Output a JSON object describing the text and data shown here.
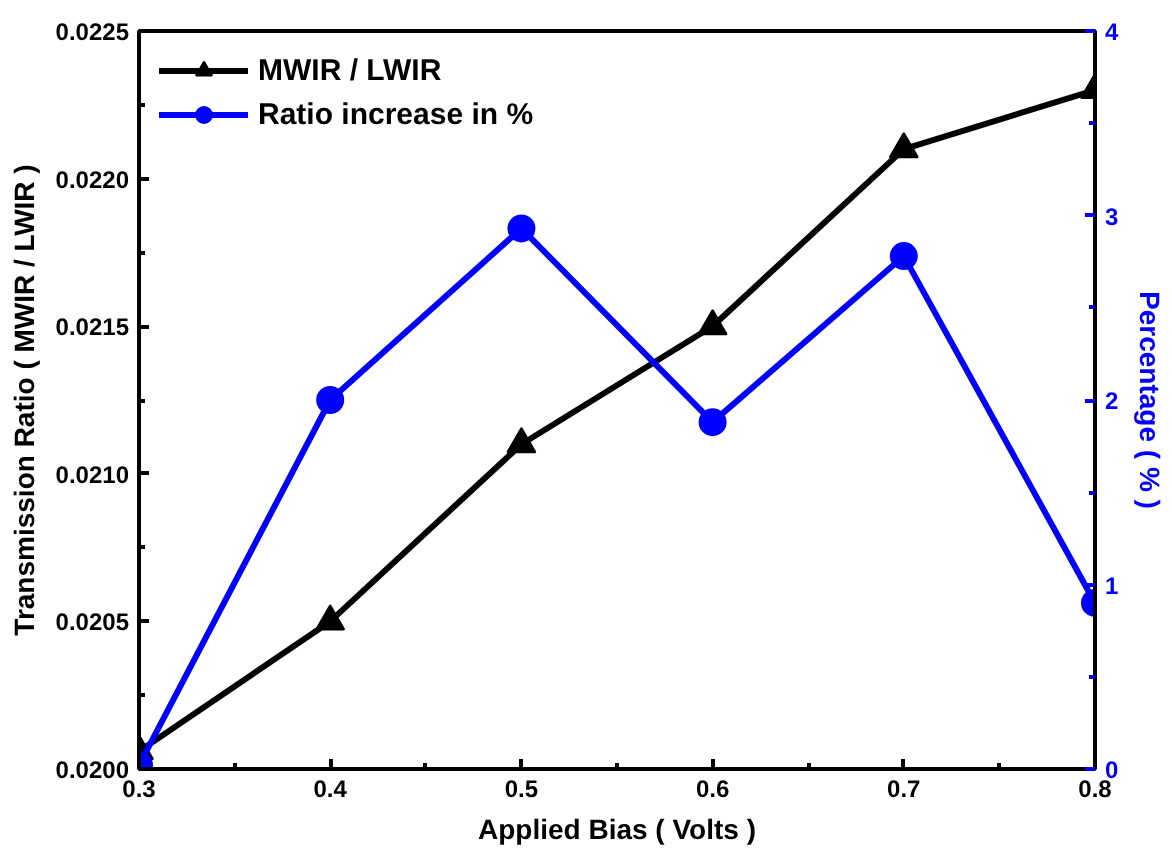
{
  "chart_data": {
    "type": "line",
    "xlabel": "Applied Bias ( Volts )",
    "ylabel": "Transmission Ratio ( MWIR / LWIR )",
    "y2label": "Percentage ( % )",
    "x": [
      0.3,
      0.4,
      0.5,
      0.6,
      0.7,
      0.8
    ],
    "series": [
      {
        "name": "MWIR / LWIR",
        "color": "#000000",
        "marker": "triangle",
        "values": [
          0.02006,
          0.0205,
          0.0211,
          0.0215,
          0.0221,
          0.0223
        ]
      },
      {
        "name": "Ratio increase in %",
        "color": "#0000ff",
        "marker": "circle",
        "axis": "y2",
        "values": [
          0.02,
          2.0,
          2.93,
          1.88,
          2.78,
          0.9
        ]
      }
    ],
    "xlim": [
      0.3,
      0.8
    ],
    "xticks": [
      0.3,
      {
        "value": 0.35,
        "label": null
      },
      0.4,
      {
        "value": 0.45,
        "label": null
      },
      0.5,
      {
        "value": 0.55,
        "label": null
      },
      0.6,
      {
        "value": 0.65,
        "label": null
      },
      0.7,
      {
        "value": 0.75,
        "label": null
      },
      0.8
    ],
    "ylim": [
      0.02,
      0.0225
    ],
    "yticks": [
      {
        "value": 0.02,
        "label": "0.0200"
      },
      {
        "value": 0.02025,
        "label": null
      },
      {
        "value": 0.0205,
        "label": "0.0205"
      },
      {
        "value": 0.02075,
        "label": null
      },
      {
        "value": 0.021,
        "label": "0.0210"
      },
      {
        "value": 0.02125,
        "label": null
      },
      {
        "value": 0.0215,
        "label": "0.0215"
      },
      {
        "value": 0.02175,
        "label": null
      },
      {
        "value": 0.022,
        "label": "0.0220"
      },
      {
        "value": 0.02225,
        "label": null
      },
      {
        "value": 0.0225,
        "label": "0.0225"
      }
    ],
    "y2lim": [
      0,
      4
    ],
    "y2ticks": [
      0,
      {
        "value": 0.5,
        "label": null
      },
      1,
      {
        "value": 1.5,
        "label": null
      },
      2,
      {
        "value": 2.5,
        "label": null
      },
      3,
      {
        "value": 3.5,
        "label": null
      },
      4
    ],
    "legend": "top left",
    "grid": false,
    "line_style": "solid"
  }
}
